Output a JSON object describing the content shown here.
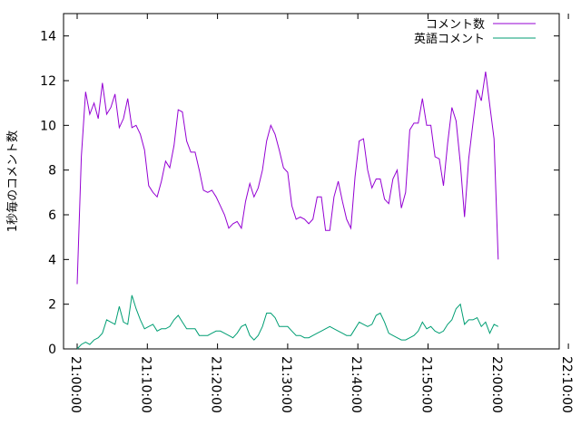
{
  "chart_data": {
    "type": "line",
    "title": "",
    "xlabel": "",
    "ylabel": "1秒毎のコメント数",
    "x_ticks": [
      "21:00:00",
      "21:10:00",
      "21:20:00",
      "21:30:00",
      "21:40:00",
      "21:50:00",
      "22:00:00",
      "22:10:00"
    ],
    "y_ticks": [
      "0",
      "2",
      "4",
      "6",
      "8",
      "10",
      "12",
      "14"
    ],
    "xlim_minutes": [
      0,
      70
    ],
    "ylim": [
      0,
      15
    ],
    "grid": false,
    "legend": "top-right",
    "series": [
      {
        "name": "コメント数",
        "color": "#9400d3",
        "points": [
          [
            0.0,
            2.9
          ],
          [
            0.6,
            8.6
          ],
          [
            1.2,
            11.5
          ],
          [
            1.8,
            10.5
          ],
          [
            2.4,
            11.0
          ],
          [
            3.0,
            10.3
          ],
          [
            3.6,
            11.9
          ],
          [
            4.2,
            10.5
          ],
          [
            4.8,
            10.8
          ],
          [
            5.4,
            11.4
          ],
          [
            6.0,
            9.9
          ],
          [
            6.6,
            10.3
          ],
          [
            7.2,
            11.2
          ],
          [
            7.8,
            9.9
          ],
          [
            8.4,
            10.0
          ],
          [
            9.0,
            9.6
          ],
          [
            9.6,
            8.9
          ],
          [
            10.2,
            7.3
          ],
          [
            10.8,
            7.0
          ],
          [
            11.4,
            6.8
          ],
          [
            12.0,
            7.5
          ],
          [
            12.6,
            8.4
          ],
          [
            13.2,
            8.1
          ],
          [
            13.8,
            9.1
          ],
          [
            14.4,
            10.7
          ],
          [
            15.0,
            10.6
          ],
          [
            15.6,
            9.3
          ],
          [
            16.2,
            8.8
          ],
          [
            16.8,
            8.8
          ],
          [
            17.4,
            8.0
          ],
          [
            18.0,
            7.1
          ],
          [
            18.6,
            7.0
          ],
          [
            19.2,
            7.1
          ],
          [
            19.8,
            6.8
          ],
          [
            20.4,
            6.4
          ],
          [
            21.0,
            6.0
          ],
          [
            21.6,
            5.4
          ],
          [
            22.2,
            5.6
          ],
          [
            22.8,
            5.7
          ],
          [
            23.4,
            5.4
          ],
          [
            24.0,
            6.6
          ],
          [
            24.6,
            7.4
          ],
          [
            25.2,
            6.8
          ],
          [
            25.8,
            7.2
          ],
          [
            26.4,
            8.0
          ],
          [
            27.0,
            9.3
          ],
          [
            27.6,
            10.0
          ],
          [
            28.2,
            9.6
          ],
          [
            28.8,
            8.9
          ],
          [
            29.4,
            8.1
          ],
          [
            30.0,
            7.9
          ],
          [
            30.6,
            6.4
          ],
          [
            31.2,
            5.8
          ],
          [
            31.8,
            5.9
          ],
          [
            32.4,
            5.8
          ],
          [
            33.0,
            5.6
          ],
          [
            33.6,
            5.8
          ],
          [
            34.2,
            6.8
          ],
          [
            34.8,
            6.8
          ],
          [
            35.4,
            5.3
          ],
          [
            36.0,
            5.3
          ],
          [
            36.6,
            6.8
          ],
          [
            37.2,
            7.5
          ],
          [
            37.8,
            6.6
          ],
          [
            38.4,
            5.8
          ],
          [
            39.0,
            5.4
          ],
          [
            39.6,
            7.7
          ],
          [
            40.2,
            9.3
          ],
          [
            40.8,
            9.4
          ],
          [
            41.4,
            8.0
          ],
          [
            42.0,
            7.2
          ],
          [
            42.6,
            7.6
          ],
          [
            43.2,
            7.6
          ],
          [
            43.8,
            6.7
          ],
          [
            44.4,
            6.5
          ],
          [
            45.0,
            7.6
          ],
          [
            45.6,
            8.0
          ],
          [
            46.2,
            6.3
          ],
          [
            46.8,
            7.0
          ],
          [
            47.4,
            9.8
          ],
          [
            48.0,
            10.1
          ],
          [
            48.6,
            10.1
          ],
          [
            49.2,
            11.2
          ],
          [
            49.8,
            10.0
          ],
          [
            50.4,
            10.0
          ],
          [
            51.0,
            8.6
          ],
          [
            51.6,
            8.5
          ],
          [
            52.2,
            7.3
          ],
          [
            52.8,
            9.2
          ],
          [
            53.4,
            10.8
          ],
          [
            54.0,
            10.2
          ],
          [
            54.6,
            8.3
          ],
          [
            55.2,
            5.9
          ],
          [
            55.8,
            8.5
          ],
          [
            56.4,
            10.1
          ],
          [
            57.0,
            11.6
          ],
          [
            57.6,
            11.1
          ],
          [
            58.2,
            12.4
          ],
          [
            58.8,
            10.9
          ],
          [
            59.4,
            9.4
          ],
          [
            60.0,
            4.0
          ]
        ]
      },
      {
        "name": "英語コメント",
        "color": "#009e73",
        "points": [
          [
            0.0,
            0.0
          ],
          [
            0.6,
            0.2
          ],
          [
            1.2,
            0.3
          ],
          [
            1.8,
            0.2
          ],
          [
            2.4,
            0.4
          ],
          [
            3.0,
            0.5
          ],
          [
            3.6,
            0.7
          ],
          [
            4.2,
            1.3
          ],
          [
            4.8,
            1.2
          ],
          [
            5.4,
            1.1
          ],
          [
            6.0,
            1.9
          ],
          [
            6.6,
            1.2
          ],
          [
            7.2,
            1.1
          ],
          [
            7.8,
            2.4
          ],
          [
            8.4,
            1.8
          ],
          [
            9.0,
            1.3
          ],
          [
            9.6,
            0.9
          ],
          [
            10.2,
            1.0
          ],
          [
            10.8,
            1.1
          ],
          [
            11.4,
            0.8
          ],
          [
            12.0,
            0.9
          ],
          [
            12.6,
            0.9
          ],
          [
            13.2,
            1.0
          ],
          [
            13.8,
            1.3
          ],
          [
            14.4,
            1.5
          ],
          [
            15.0,
            1.2
          ],
          [
            15.6,
            0.9
          ],
          [
            16.2,
            0.9
          ],
          [
            16.8,
            0.9
          ],
          [
            17.4,
            0.6
          ],
          [
            18.0,
            0.6
          ],
          [
            18.6,
            0.6
          ],
          [
            19.2,
            0.7
          ],
          [
            19.8,
            0.8
          ],
          [
            20.4,
            0.8
          ],
          [
            21.0,
            0.7
          ],
          [
            21.6,
            0.6
          ],
          [
            22.2,
            0.5
          ],
          [
            22.8,
            0.7
          ],
          [
            23.4,
            1.0
          ],
          [
            24.0,
            1.1
          ],
          [
            24.6,
            0.6
          ],
          [
            25.2,
            0.4
          ],
          [
            25.8,
            0.6
          ],
          [
            26.4,
            1.0
          ],
          [
            27.0,
            1.6
          ],
          [
            27.6,
            1.6
          ],
          [
            28.2,
            1.4
          ],
          [
            28.8,
            1.0
          ],
          [
            29.4,
            1.0
          ],
          [
            30.0,
            1.0
          ],
          [
            30.6,
            0.8
          ],
          [
            31.2,
            0.6
          ],
          [
            31.8,
            0.6
          ],
          [
            32.4,
            0.5
          ],
          [
            33.0,
            0.5
          ],
          [
            33.6,
            0.6
          ],
          [
            34.2,
            0.7
          ],
          [
            34.8,
            0.8
          ],
          [
            35.4,
            0.9
          ],
          [
            36.0,
            1.0
          ],
          [
            36.6,
            0.9
          ],
          [
            37.2,
            0.8
          ],
          [
            37.8,
            0.7
          ],
          [
            38.4,
            0.6
          ],
          [
            39.0,
            0.6
          ],
          [
            39.6,
            0.9
          ],
          [
            40.2,
            1.2
          ],
          [
            40.8,
            1.1
          ],
          [
            41.4,
            1.0
          ],
          [
            42.0,
            1.1
          ],
          [
            42.6,
            1.5
          ],
          [
            43.2,
            1.6
          ],
          [
            43.8,
            1.2
          ],
          [
            44.4,
            0.7
          ],
          [
            45.0,
            0.6
          ],
          [
            45.6,
            0.5
          ],
          [
            46.2,
            0.4
          ],
          [
            46.8,
            0.4
          ],
          [
            47.4,
            0.5
          ],
          [
            48.0,
            0.6
          ],
          [
            48.6,
            0.8
          ],
          [
            49.2,
            1.2
          ],
          [
            49.8,
            0.9
          ],
          [
            50.4,
            1.0
          ],
          [
            51.0,
            0.8
          ],
          [
            51.6,
            0.7
          ],
          [
            52.2,
            0.8
          ],
          [
            52.8,
            1.1
          ],
          [
            53.4,
            1.3
          ],
          [
            54.0,
            1.8
          ],
          [
            54.6,
            2.0
          ],
          [
            55.2,
            1.1
          ],
          [
            55.8,
            1.3
          ],
          [
            56.4,
            1.3
          ],
          [
            57.0,
            1.4
          ],
          [
            57.6,
            1.0
          ],
          [
            58.2,
            1.2
          ],
          [
            58.8,
            0.7
          ],
          [
            59.4,
            1.1
          ],
          [
            60.0,
            1.0
          ]
        ]
      }
    ]
  }
}
